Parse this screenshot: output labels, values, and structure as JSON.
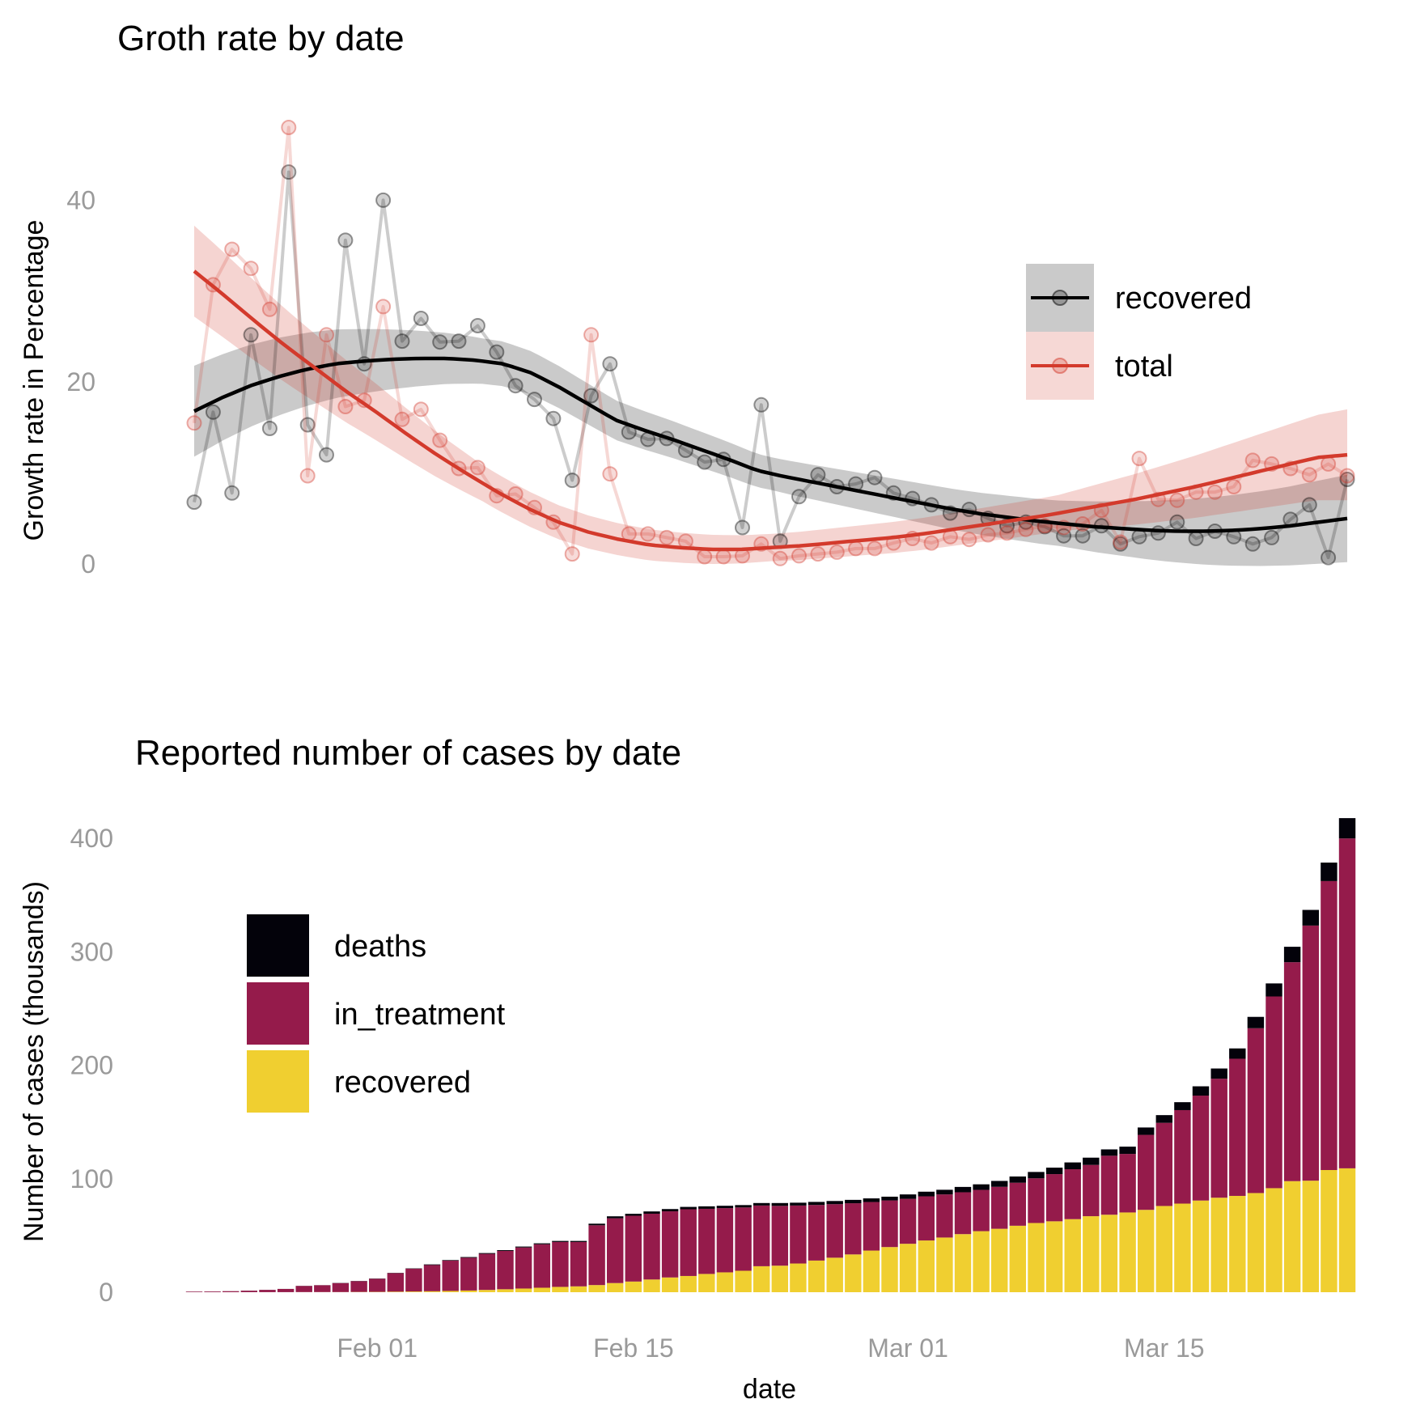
{
  "chart_data": [
    {
      "type": "line",
      "title": "Groth rate by date",
      "xlabel": "",
      "ylabel": "Growth rate in Percentage",
      "ylim": [
        -10,
        53
      ],
      "x_start": "2020-01-22",
      "yticks": [
        0,
        20,
        40
      ],
      "grid": false,
      "legend_position": "right",
      "smoothing": "loess",
      "colors": {
        "recovered": "#000000",
        "total": "#d33a2c"
      },
      "series": [
        {
          "name": "recovered",
          "values": [
            6.8,
            16.7,
            7.8,
            25.2,
            14.9,
            43.1,
            15.3,
            12,
            35.6,
            22,
            40,
            24.5,
            27,
            24.4,
            24.5,
            26.2,
            23.3,
            19.6,
            18.1,
            16,
            9.2,
            18.5,
            22,
            14.5,
            13.7,
            13.8,
            12.5,
            11.2,
            11.5,
            4,
            17.5,
            2.5,
            7.4,
            9.8,
            8.5,
            8.8,
            9.5,
            7.8,
            7.2,
            6.5,
            5.6,
            6,
            5,
            4.2,
            4.6,
            4.1,
            3.1,
            3.1,
            4.2,
            2.2,
            3,
            3.4,
            4.6,
            2.8,
            3.6,
            3,
            2.2,
            2.9,
            4.9,
            6.5,
            0.7,
            9.3
          ],
          "trend": [
            16.8,
            18.3,
            19.6,
            20.6,
            21.4,
            22,
            22.3,
            22.5,
            22.6,
            22.6,
            22.4,
            22,
            21,
            19.4,
            17.6,
            15.8,
            14.7,
            13.7,
            12.6,
            11.5,
            10.3,
            9.6,
            9,
            8.4,
            7.8,
            7.2,
            6.6,
            6,
            5.5,
            5.1,
            4.7,
            4.4,
            4.1,
            3.9,
            3.7,
            3.6,
            3.6,
            3.7,
            3.9,
            4.2,
            4.6,
            5
          ],
          "trend_band": [
            5,
            2.5,
            1.8,
            2.5,
            4.8
          ]
        },
        {
          "name": "total",
          "values": [
            15.5,
            30.7,
            34.6,
            32.5,
            28,
            48,
            9.7,
            25.2,
            17.3,
            18,
            28.3,
            15.9,
            17,
            13.6,
            10.5,
            10.6,
            7.5,
            7.7,
            6.2,
            4.6,
            1.1,
            25.2,
            9.9,
            3.3,
            3.3,
            2.9,
            2.5,
            0.8,
            0.8,
            0.9,
            2.2,
            0.6,
            0.9,
            1.1,
            1.3,
            1.7,
            1.7,
            2.3,
            2.8,
            2.3,
            3,
            2.7,
            3.2,
            3.4,
            3.8,
            4.2,
            4,
            4.4,
            5.9,
            2.4,
            11.6,
            7.1,
            7,
            7.9,
            7.9,
            8.5,
            11.4,
            11,
            10.5,
            9.8,
            11,
            9.7
          ],
          "trend": [
            32.2,
            29.5,
            26.7,
            24,
            21.5,
            19,
            16.7,
            14.3,
            12,
            9.9,
            7.9,
            6.1,
            4.6,
            3.5,
            2.7,
            2.1,
            1.8,
            1.6,
            1.6,
            1.8,
            2,
            2.3,
            2.6,
            2.9,
            3.3,
            3.8,
            4.3,
            4.8,
            5.3,
            5.9,
            6.5,
            7.1,
            7.8,
            8.5,
            9.3,
            10.1,
            10.9,
            11.7,
            12
          ],
          "trend_band": [
            5,
            2,
            1.5,
            2,
            5
          ]
        }
      ]
    },
    {
      "type": "bar",
      "stacked": true,
      "title": "Reported number of cases by date",
      "xlabel": "date",
      "ylabel": "Number of cases (thousands)",
      "ylim": [
        0,
        420
      ],
      "yticks": [
        0,
        100,
        200,
        300,
        400
      ],
      "x_start": "2020-01-22",
      "xticks": [
        {
          "index": 10,
          "label": "Feb 01"
        },
        {
          "index": 24,
          "label": "Feb 15"
        },
        {
          "index": 39,
          "label": "Mar 01"
        },
        {
          "index": 53,
          "label": "Mar 15"
        }
      ],
      "grid": false,
      "legend_position": "top-left",
      "colors": {
        "deaths": "#03020a",
        "in_treatment": "#951b4b",
        "recovered": "#f0cf30"
      },
      "totals": [
        0.56,
        0.65,
        0.94,
        1.4,
        2.1,
        2.9,
        5.6,
        6.2,
        8.2,
        9.9,
        12,
        17,
        21,
        24.5,
        28.3,
        31,
        34.5,
        37.1,
        40.2,
        43.1,
        45.2,
        45.2,
        60.4,
        66.9,
        69.1,
        71.2,
        73.3,
        75.2,
        75.7,
        76.2,
        76.8,
        78.6,
        78.6,
        78.9,
        79.6,
        80.4,
        81.4,
        82.7,
        84.2,
        86.2,
        88.6,
        90.3,
        92.8,
        95.1,
        98.1,
        102,
        106,
        109.8,
        114.4,
        118.6,
        125.9,
        128.3,
        145.2,
        156.1,
        167.5,
        181.5,
        197.2,
        214.9,
        242.7,
        272.2,
        304.5,
        337,
        378.7,
        417.9
      ],
      "series": [
        {
          "name": "recovered",
          "values": [
            0.03,
            0.03,
            0.04,
            0.04,
            0.05,
            0.06,
            0.11,
            0.13,
            0.14,
            0.22,
            0.28,
            0.47,
            0.62,
            0.85,
            1.12,
            1.49,
            2.01,
            2.61,
            3.24,
            3.94,
            4.68,
            5.15,
            6.3,
            8.06,
            9.4,
            11.2,
            13,
            14.3,
            16.1,
            17.5,
            18.9,
            22.9,
            23.4,
            25.3,
            27.9,
            30.4,
            33.3,
            36.7,
            39.8,
            42.7,
            45.6,
            48.2,
            51.2,
            53.8,
            55.9,
            58.6,
            61,
            62.5,
            64.4,
            67,
            68.3,
            70.3,
            72.6,
            76,
            78.1,
            80.8,
            83.3,
            84.9,
            87.4,
            91.7,
            97.9,
            98.3,
            107.7,
            109.2
          ]
        },
        {
          "name": "in_treatment",
          "values": [
            0.51,
            0.6,
            0.87,
            1.3,
            2,
            2.8,
            5.4,
            6,
            7.9,
            9.5,
            11.5,
            16.3,
            20.1,
            23.1,
            26.7,
            28.9,
            31.8,
            33.8,
            36.2,
            38.3,
            39.6,
            39.1,
            52.7,
            57.1,
            58,
            58,
            58.3,
            58.8,
            57.4,
            56.6,
            55.8,
            53.5,
            52.7,
            51.1,
            49,
            47.2,
            45.1,
            42.8,
            41.1,
            39.6,
            38.9,
            38,
            36.9,
            36.4,
            37,
            37.9,
            39.4,
            41.6,
            44,
            45.2,
            52,
            51.6,
            66.1,
            73.3,
            82.4,
            92.5,
            104.9,
            120.9,
            145.3,
            169,
            193,
            224.9,
            254.7,
            290.8
          ]
        },
        {
          "name": "deaths",
          "values": [
            0.02,
            0.02,
            0.03,
            0.06,
            0.05,
            0.04,
            0.09,
            0.07,
            0.16,
            0.18,
            0.22,
            0.23,
            0.28,
            0.55,
            0.48,
            0.61,
            0.69,
            0.69,
            0.8,
            0.86,
            0.92,
            0.95,
            1.4,
            1.74,
            1.7,
            2,
            2,
            2.1,
            2.2,
            2.1,
            2.1,
            2.2,
            2.5,
            2.5,
            2.7,
            2.8,
            3,
            3.2,
            3.3,
            3.9,
            4.1,
            4.1,
            4.7,
            4.9,
            5.2,
            5.5,
            5.6,
            5.7,
            6,
            6.4,
            5.6,
            6.4,
            6.5,
            6.8,
            7,
            8.2,
            9,
            9.1,
            10,
            11.5,
            13.6,
            13.8,
            16.3,
            17.9
          ]
        }
      ]
    }
  ]
}
